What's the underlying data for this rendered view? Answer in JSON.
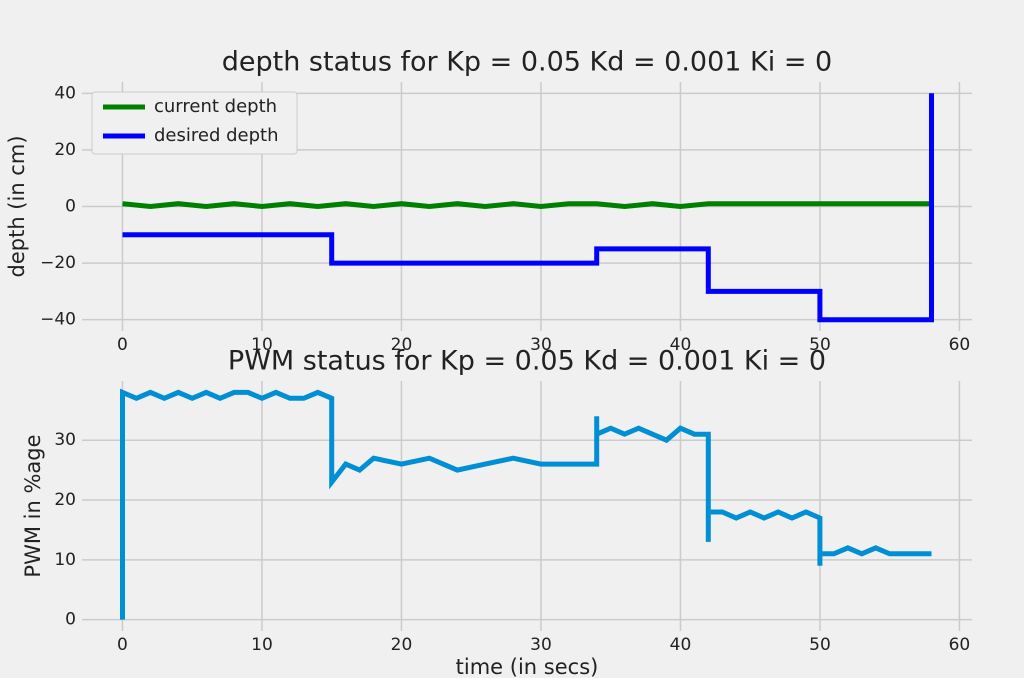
{
  "chart_data": [
    {
      "type": "line",
      "title": "depth status for Kp = 0.05 Kd = 0.001 Ki = 0",
      "y_label": "depth (in cm)",
      "xlim": [
        -2.9,
        60.9
      ],
      "xticks": [
        0,
        10,
        20,
        30,
        40,
        50,
        60
      ],
      "ylim": [
        -44,
        44
      ],
      "yticks": [
        {
          "value": -40,
          "label": "−40"
        },
        {
          "value": -20,
          "label": "−20"
        },
        0,
        20,
        40
      ],
      "grid": true,
      "legend": "upper-left",
      "series": [
        {
          "name": "current depth",
          "color": "#008000",
          "x": [
            0,
            2,
            4,
            6,
            8,
            10,
            12,
            14,
            16,
            18,
            20,
            22,
            24,
            26,
            28,
            30,
            32,
            34,
            36,
            38,
            40,
            42,
            44,
            46,
            48,
            50,
            52,
            54,
            56,
            58
          ],
          "values": [
            1,
            0,
            1,
            0,
            1,
            0,
            1,
            0,
            1,
            0,
            1,
            0,
            1,
            0,
            1,
            0,
            1,
            1,
            0,
            1,
            0,
            1,
            1,
            1,
            1,
            1,
            1,
            1,
            1,
            1
          ]
        },
        {
          "name": "desired depth",
          "color": "#0000ff",
          "x": [
            0,
            15,
            15,
            34,
            34,
            42,
            42,
            50,
            50,
            58,
            58
          ],
          "values": [
            -10,
            -10,
            -20,
            -20,
            -15,
            -15,
            -30,
            -30,
            -40,
            -40,
            40
          ]
        }
      ]
    },
    {
      "type": "line",
      "title": "PWM status for Kp = 0.05 Kd = 0.001 Ki = 0",
      "x_label": "time (in secs)",
      "y_label": "PWM in %age",
      "xlim": [
        -2.9,
        60.9
      ],
      "xticks": [
        0,
        10,
        20,
        30,
        40,
        50,
        60
      ],
      "ylim": [
        -1.9,
        39.9
      ],
      "yticks": [
        0,
        10,
        20,
        30
      ],
      "grid": true,
      "series": [
        {
          "color": "#008fd5",
          "x": [
            0,
            0,
            1,
            2,
            3,
            4,
            5,
            6,
            7,
            8,
            9,
            10,
            11,
            12,
            13,
            14,
            15,
            15,
            16,
            17,
            18,
            20,
            22,
            24,
            26,
            28,
            30,
            32,
            34,
            34,
            34,
            35,
            36,
            37,
            38,
            39,
            40,
            41,
            42,
            42,
            42,
            43,
            44,
            45,
            46,
            47,
            48,
            49,
            50,
            50,
            50,
            51,
            52,
            53,
            54,
            55,
            56,
            57,
            58
          ],
          "values": [
            0,
            38,
            37,
            38,
            37,
            38,
            37,
            38,
            37,
            38,
            38,
            37,
            38,
            37,
            37,
            38,
            37,
            23,
            26,
            25,
            27,
            26,
            27,
            25,
            26,
            27,
            26,
            26,
            26,
            34,
            31,
            32,
            31,
            32,
            31,
            30,
            32,
            31,
            31,
            13,
            18,
            18,
            17,
            18,
            17,
            18,
            17,
            18,
            17,
            9,
            11,
            11,
            12,
            11,
            12,
            11,
            11,
            11,
            11
          ]
        }
      ]
    }
  ]
}
